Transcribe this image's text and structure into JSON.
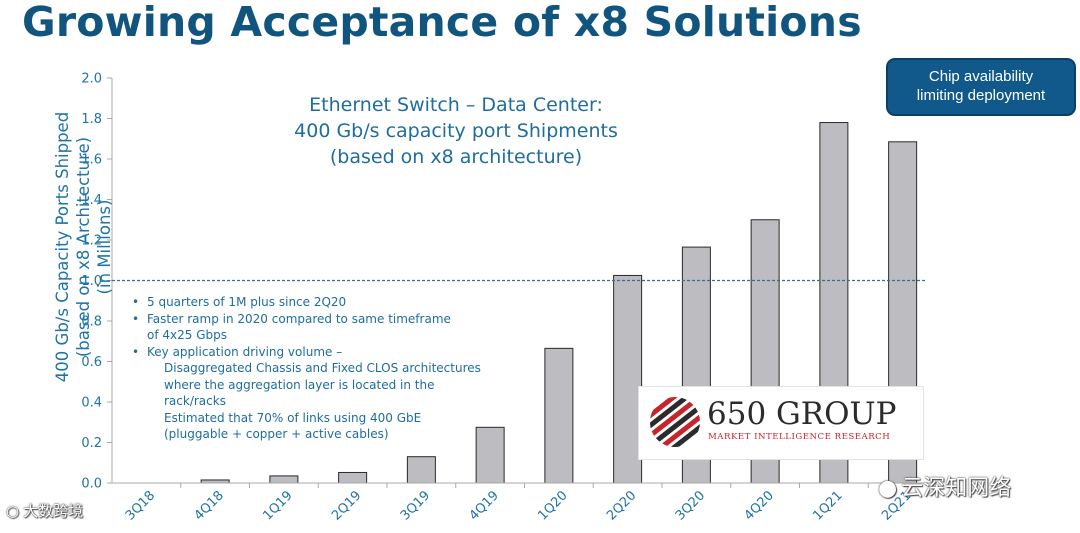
{
  "title": "Growing Acceptance of x8 Solutions",
  "callout": {
    "line1": "Chip availability",
    "line2": "limiting deployment"
  },
  "chart_data": {
    "type": "bar",
    "title_lines": [
      "Ethernet Switch – Data Center:",
      "400 Gb/s capacity port Shipments",
      "(based on x8 architecture)"
    ],
    "ylabel_lines": [
      "400 Gb/s Capacity Ports Shipped",
      "(based on x8 Architecture)",
      "(in Millions)"
    ],
    "xlabel": "",
    "categories": [
      "3Q18",
      "4Q18",
      "1Q19",
      "2Q19",
      "3Q19",
      "4Q19",
      "1Q20",
      "2Q20",
      "3Q20",
      "4Q20",
      "1Q21",
      "2Q21"
    ],
    "values": [
      0,
      0.015,
      0.035,
      0.052,
      0.13,
      0.275,
      0.665,
      1.025,
      1.165,
      1.3,
      1.78,
      1.685
    ],
    "ylim": [
      0,
      2.0
    ],
    "yticks": [
      "0.0",
      "0.2",
      "0.4",
      "0.6",
      "0.8",
      "1.0",
      "1.2",
      "1.4",
      "1.6",
      "1.8",
      "2.0"
    ],
    "reference_line": 1.0,
    "grid": false,
    "bar_color": "#bdbdc1",
    "bar_edge_color": "#2a2a2a",
    "reference_line_color": "#2f6f9a"
  },
  "notes": {
    "bullet1": "5 quarters of 1M plus since 2Q20",
    "bullet2_line1": "Faster ramp in 2020 compared to same timeframe",
    "bullet2_line2": "of 4x25 Gbps",
    "bullet3": "Key application driving volume –",
    "sub1_line1": "Disaggregated Chassis and Fixed CLOS architectures",
    "sub1_line2": "where the aggregation layer is located in the",
    "sub1_line3": "rack/racks",
    "sub2_line1": "Estimated that 70% of links using 400 GbE",
    "sub2_line2": "(pluggable + copper + active cables)"
  },
  "logo": {
    "name": "650 GROUP",
    "tagline": "MARKET INTELLIGENCE RESEARCH"
  },
  "watermarks": {
    "left": "大数跨境",
    "right": "云深知网络"
  },
  "colors": {
    "title": "#11557f",
    "accent": "#1e73a8",
    "callout_bg": "#10598a",
    "logo_red": "#c8242b"
  }
}
